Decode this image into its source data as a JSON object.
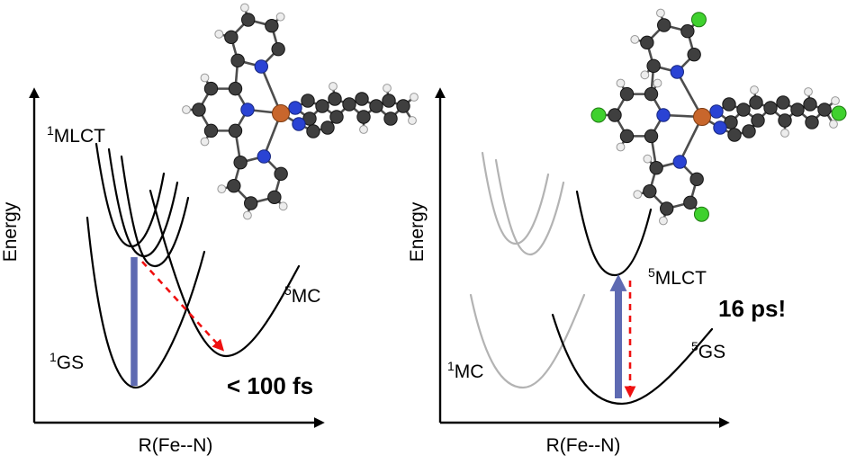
{
  "figure": {
    "background": "#ffffff",
    "colors": {
      "curve_black": "#000000",
      "curve_gray": "#b3b3b3",
      "axis": "#000000",
      "arrow_blue": "#5e6ab2",
      "arrow_red": "#ef1010",
      "annotation_red": "#ef1010",
      "label_gray": "#a9a9a9",
      "bond": "#4d4d4d"
    }
  },
  "left_panel": {
    "y_axis_label": "Energy",
    "x_axis_label": "R(Fe--N)",
    "states": {
      "mlct": {
        "sup": "1",
        "name": "MLCT"
      },
      "gs": {
        "sup": "1",
        "name": "GS"
      },
      "mc": {
        "sup": "5",
        "name": "MC"
      }
    },
    "annotation": "< 100 fs"
  },
  "right_panel": {
    "y_axis_label": "Energy",
    "x_axis_label": "R(Fe--N)",
    "states": {
      "mlct": {
        "sup": "5",
        "name": "MLCT"
      },
      "gs": {
        "sup": "5",
        "name": "GS"
      },
      "mc": {
        "sup": "1",
        "name": "MC"
      }
    },
    "annotation": "16 ps!"
  },
  "molecules": {
    "atom_colors": {
      "C": "#3f3f3f",
      "H": "#ededed",
      "N": "#2a43d4",
      "Fe": "#c8662c",
      "Cl": "#3fd12e",
      "C_stroke": "#141414",
      "H_stroke": "#999999",
      "N_stroke": "#16267e",
      "Fe_stroke": "#7e3c12",
      "Cl_stroke": "#1f7a12"
    }
  }
}
